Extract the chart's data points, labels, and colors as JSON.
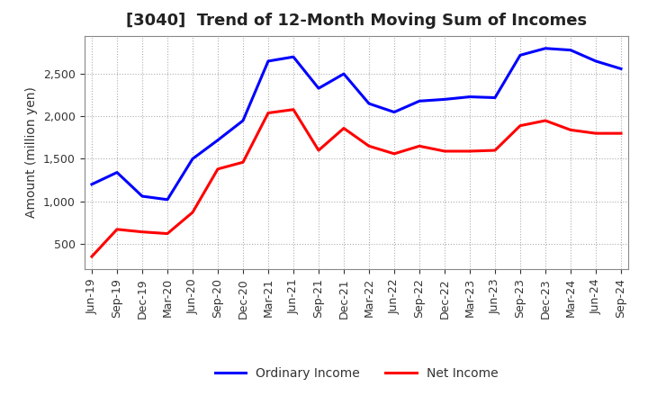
{
  "title": "[3040]  Trend of 12-Month Moving Sum of Incomes",
  "ylabel": "Amount (million yen)",
  "xlabels": [
    "Jun-19",
    "Sep-19",
    "Dec-19",
    "Mar-20",
    "Jun-20",
    "Sep-20",
    "Dec-20",
    "Mar-21",
    "Jun-21",
    "Sep-21",
    "Dec-21",
    "Mar-22",
    "Jun-22",
    "Sep-22",
    "Dec-22",
    "Mar-23",
    "Jun-23",
    "Sep-23",
    "Dec-23",
    "Mar-24",
    "Jun-24",
    "Sep-24"
  ],
  "ordinary_income": [
    1200,
    1340,
    1060,
    1020,
    1500,
    1720,
    1950,
    2650,
    2700,
    2330,
    2500,
    2150,
    2050,
    2180,
    2200,
    2230,
    2220,
    2720,
    2800,
    2780,
    2650,
    2560
  ],
  "net_income": [
    350,
    670,
    640,
    620,
    870,
    1380,
    1460,
    2040,
    2080,
    1600,
    1860,
    1650,
    1560,
    1650,
    1590,
    1590,
    1600,
    1890,
    1950,
    1840,
    1800,
    1800
  ],
  "ordinary_color": "#0000FF",
  "net_color": "#FF0000",
  "ylim_min": 200,
  "ylim_max": 2950,
  "yticks": [
    500,
    1000,
    1500,
    2000,
    2500
  ],
  "background_color": "#FFFFFF",
  "grid_color": "#999999",
  "title_fontsize": 13,
  "title_color": "#222222",
  "axis_label_fontsize": 10,
  "tick_fontsize": 9,
  "legend_labels": [
    "Ordinary Income",
    "Net Income"
  ],
  "line_width": 2.2
}
